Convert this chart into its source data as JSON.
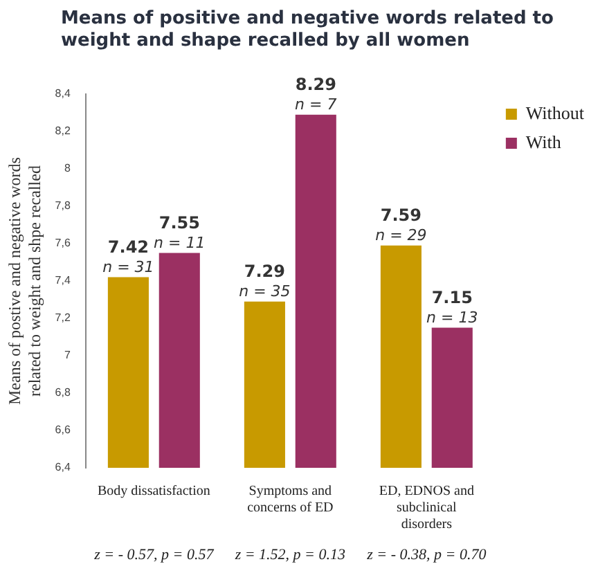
{
  "chart_data": {
    "type": "bar",
    "title": "Means of positive and negative words related to weight and shape recalled by all women",
    "ylabel": "Means of postive and negative words related to weight and shpe recalled",
    "categories": [
      "Body dissatisfaction",
      "Symptoms and concerns of ED",
      "ED, EDNOS and subclinical disorders"
    ],
    "series": [
      {
        "name": "Without",
        "color": "#c89a00",
        "values": [
          7.42,
          7.29,
          7.59
        ],
        "value_labels": [
          "7.42\nn = 31",
          "7.29\nn = 35",
          "7.59\nn = 29"
        ]
      },
      {
        "name": "With",
        "color": "#9b3062",
        "values": [
          7.55,
          8.29,
          7.15
        ],
        "value_labels": [
          "7.55\nn = 11",
          "8.29\nn = 7",
          "7.15\nn = 13"
        ]
      }
    ],
    "ylim": [
      6.4,
      8.4
    ],
    "yticks": [
      {
        "value": 6.4,
        "label": "6,4"
      },
      {
        "value": 6.6,
        "label": "6,6"
      },
      {
        "value": 6.8,
        "label": "6,8"
      },
      7,
      {
        "value": 7.2,
        "label": "7,2"
      },
      {
        "value": 7.4,
        "label": "7,4"
      },
      {
        "value": 7.6,
        "label": "7,6"
      },
      {
        "value": 7.8,
        "label": "7,8"
      },
      8,
      {
        "value": 8.2,
        "label": "8,2"
      },
      {
        "value": 8.4,
        "label": "8,4"
      }
    ],
    "annotations": [
      "z = - 0.57, p = 0.57",
      "z = 1.52, p = 0.13",
      "z = - 0.38, p = 0.70"
    ],
    "grid": false,
    "legend": "right"
  }
}
